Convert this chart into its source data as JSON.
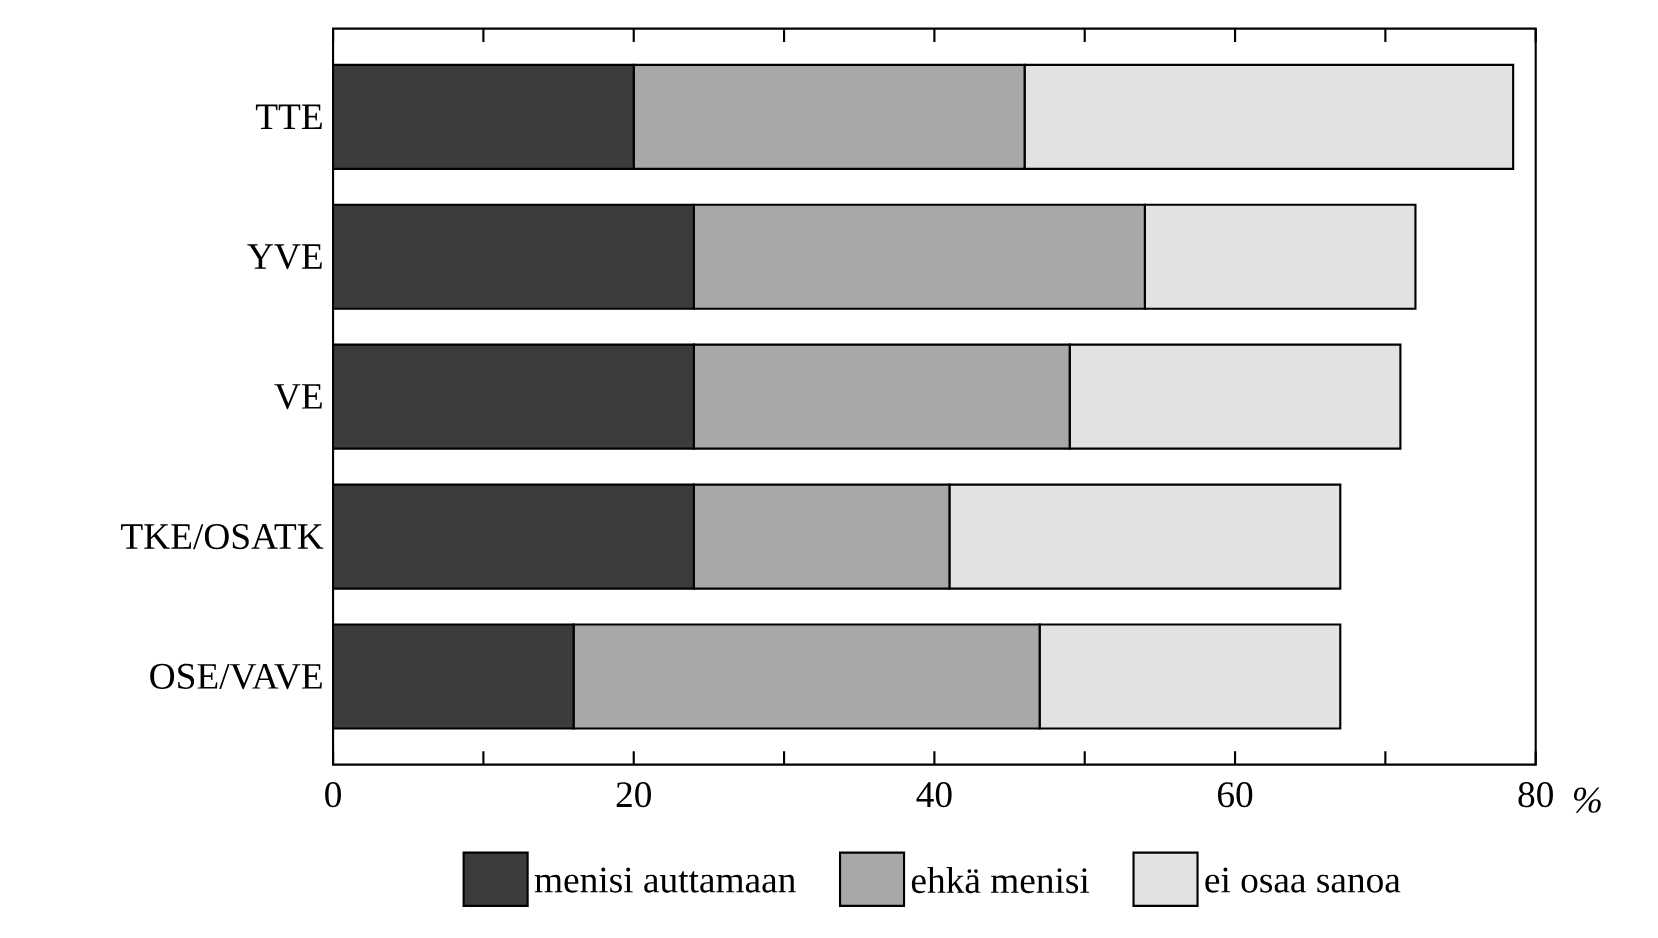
{
  "chart_data": {
    "type": "bar",
    "orientation": "horizontal",
    "stacked": true,
    "categories": [
      "TTE",
      "YVE",
      "VE",
      "TKE/OSATK",
      "OSE/VAVE"
    ],
    "series": [
      {
        "name": "menisi auttamaan",
        "color": "#3c3c3c",
        "values": [
          20,
          24,
          24,
          24,
          16
        ]
      },
      {
        "name": "ehkä menisi",
        "color": "#a8a8a8",
        "values": [
          26,
          30,
          25,
          17,
          31
        ]
      },
      {
        "name": "ei osaa sanoa",
        "color": "#e2e2e2",
        "values": [
          32.5,
          18,
          22,
          26,
          20
        ]
      }
    ],
    "xlabel": "%",
    "xlim": [
      0,
      80
    ],
    "xticks": [
      0,
      {
        "value": 10,
        "label": null
      },
      20,
      {
        "value": 30,
        "label": null
      },
      40,
      {
        "value": 50,
        "label": null
      },
      60,
      {
        "value": 70,
        "label": null
      },
      80
    ],
    "legend": "bottom"
  }
}
